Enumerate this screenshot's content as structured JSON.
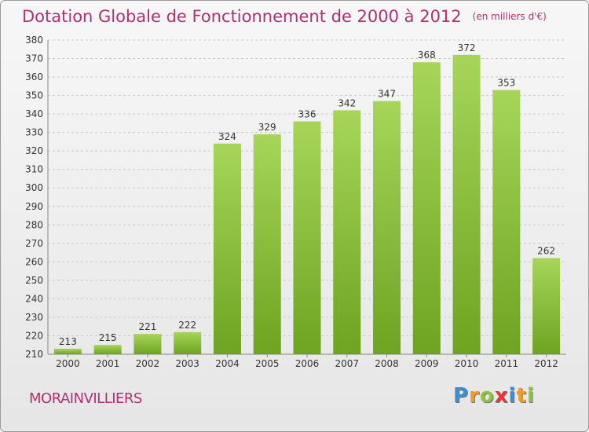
{
  "title": "Dotation Globale de Fonctionnement de 2000 à 2012",
  "unit_note": "(en milliers d'€)",
  "commune": "MORAINVILLIERS",
  "logo": {
    "text": "Proxiti",
    "letters": [
      {
        "ch": "P",
        "color": "#3a8fd0"
      },
      {
        "ch": "r",
        "color": "#f39c1e"
      },
      {
        "ch": "o",
        "color": "#8cc63e"
      },
      {
        "ch": "x",
        "color": "#e53935"
      },
      {
        "ch": "i",
        "color": "#3a8fd0"
      },
      {
        "ch": "t",
        "color": "#f39c1e"
      },
      {
        "ch": "i",
        "color": "#8cc63e"
      }
    ]
  },
  "colors": {
    "bar_light": "#a6d55a",
    "bar_dark": "#6ea321",
    "title": "#b03072"
  },
  "chart_data": {
    "type": "bar",
    "categories": [
      "2000",
      "2001",
      "2002",
      "2003",
      "2004",
      "2005",
      "2006",
      "2007",
      "2008",
      "2009",
      "2010",
      "2011",
      "2012"
    ],
    "values": [
      213,
      215,
      221,
      222,
      324,
      329,
      336,
      342,
      347,
      368,
      372,
      353,
      262
    ],
    "title": "Dotation Globale de Fonctionnement de 2000 à 2012",
    "ylim": [
      210,
      380
    ],
    "yticks": [
      210,
      220,
      230,
      240,
      250,
      260,
      270,
      280,
      290,
      300,
      310,
      320,
      330,
      340,
      350,
      360,
      370,
      380
    ],
    "grid": true,
    "data_labels": true
  }
}
